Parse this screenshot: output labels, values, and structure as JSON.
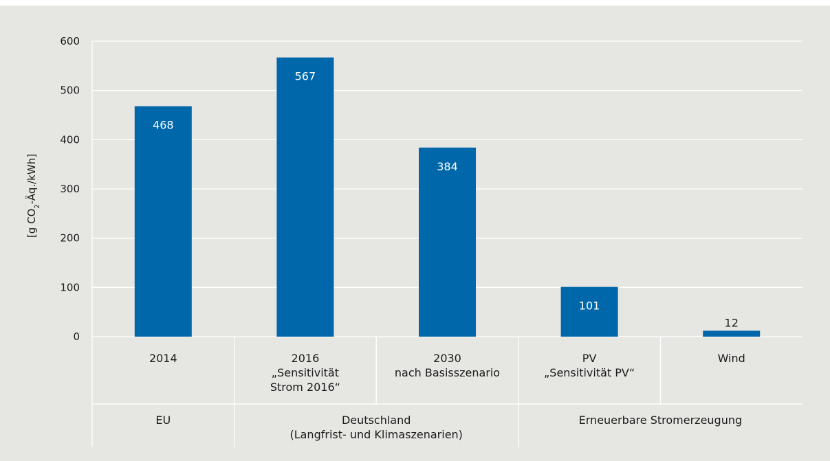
{
  "chart_data": {
    "type": "bar",
    "ylabel_parts": [
      "[g CO",
      "2",
      "-Äq./kWh]"
    ],
    "ylim": [
      0,
      600
    ],
    "yticks": [
      0,
      100,
      200,
      300,
      400,
      500,
      600
    ],
    "grid": true,
    "colors": {
      "bar": "#0068aa",
      "background": "#e6e6e2",
      "grid": "#ffffff"
    },
    "categories": [
      {
        "lines": [
          "2014"
        ]
      },
      {
        "lines": [
          "2016",
          "„Sensitivität",
          "Strom 2016“"
        ]
      },
      {
        "lines": [
          "2030",
          "nach Basisszenario"
        ]
      },
      {
        "lines": [
          "PV",
          "„Sensitivität PV“"
        ]
      },
      {
        "lines": [
          "Wind"
        ]
      }
    ],
    "values": [
      468,
      567,
      384,
      101,
      12
    ],
    "groups": [
      {
        "lines": [
          "EU"
        ],
        "categories": [
          0
        ]
      },
      {
        "lines": [
          "Deutschland",
          "(Langfrist- und Klimaszenarien)"
        ],
        "categories": [
          1,
          2
        ]
      },
      {
        "lines": [
          "Erneuerbare Stromerzeugung"
        ],
        "categories": [
          3,
          4
        ]
      }
    ]
  }
}
